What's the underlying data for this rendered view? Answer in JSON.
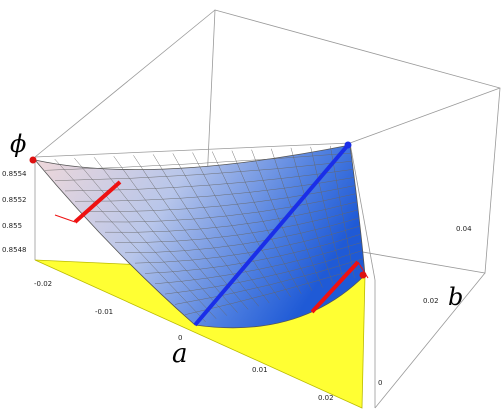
{
  "chart_data": {
    "type": "surface",
    "axes": {
      "a": {
        "label": "a",
        "range": [
          -0.02,
          0.02
        ],
        "ticks": [
          "-0.02",
          "-0.01",
          "0",
          "0.01",
          "0.02"
        ]
      },
      "b": {
        "label": "b",
        "range": [
          0,
          0.04
        ],
        "ticks": [
          "0",
          "0.02",
          "0.04"
        ]
      },
      "phi": {
        "label": "ϕ",
        "range": [
          0.8547,
          0.8555
        ],
        "ticks": [
          "0.8554",
          "0.8552",
          "0.855",
          "0.8548"
        ]
      }
    },
    "domain_region": "triangle, vertices at (a,b) = (-0.02,0), (0,0), (0.02,0)",
    "corner_values": [
      {
        "a": -0.02,
        "b": 0.0,
        "phi": 0.8554
      },
      {
        "a": 0.02,
        "b": 0.0,
        "phi": 0.8554
      },
      {
        "a": 0.02,
        "b": 0.04,
        "phi": 0.8549
      }
    ],
    "highlighted_lines": [
      {
        "color": "blue",
        "description": "from (a=0,b=0) to the far corner"
      },
      {
        "color": "red",
        "description": "short segment near the left edge"
      },
      {
        "color": "red",
        "description": "short segment near the right edge"
      }
    ],
    "projection_color": "#ffff33",
    "surface_colors": [
      "#f2d9d9",
      "#1f5ad6"
    ],
    "grid": true,
    "box": true
  }
}
